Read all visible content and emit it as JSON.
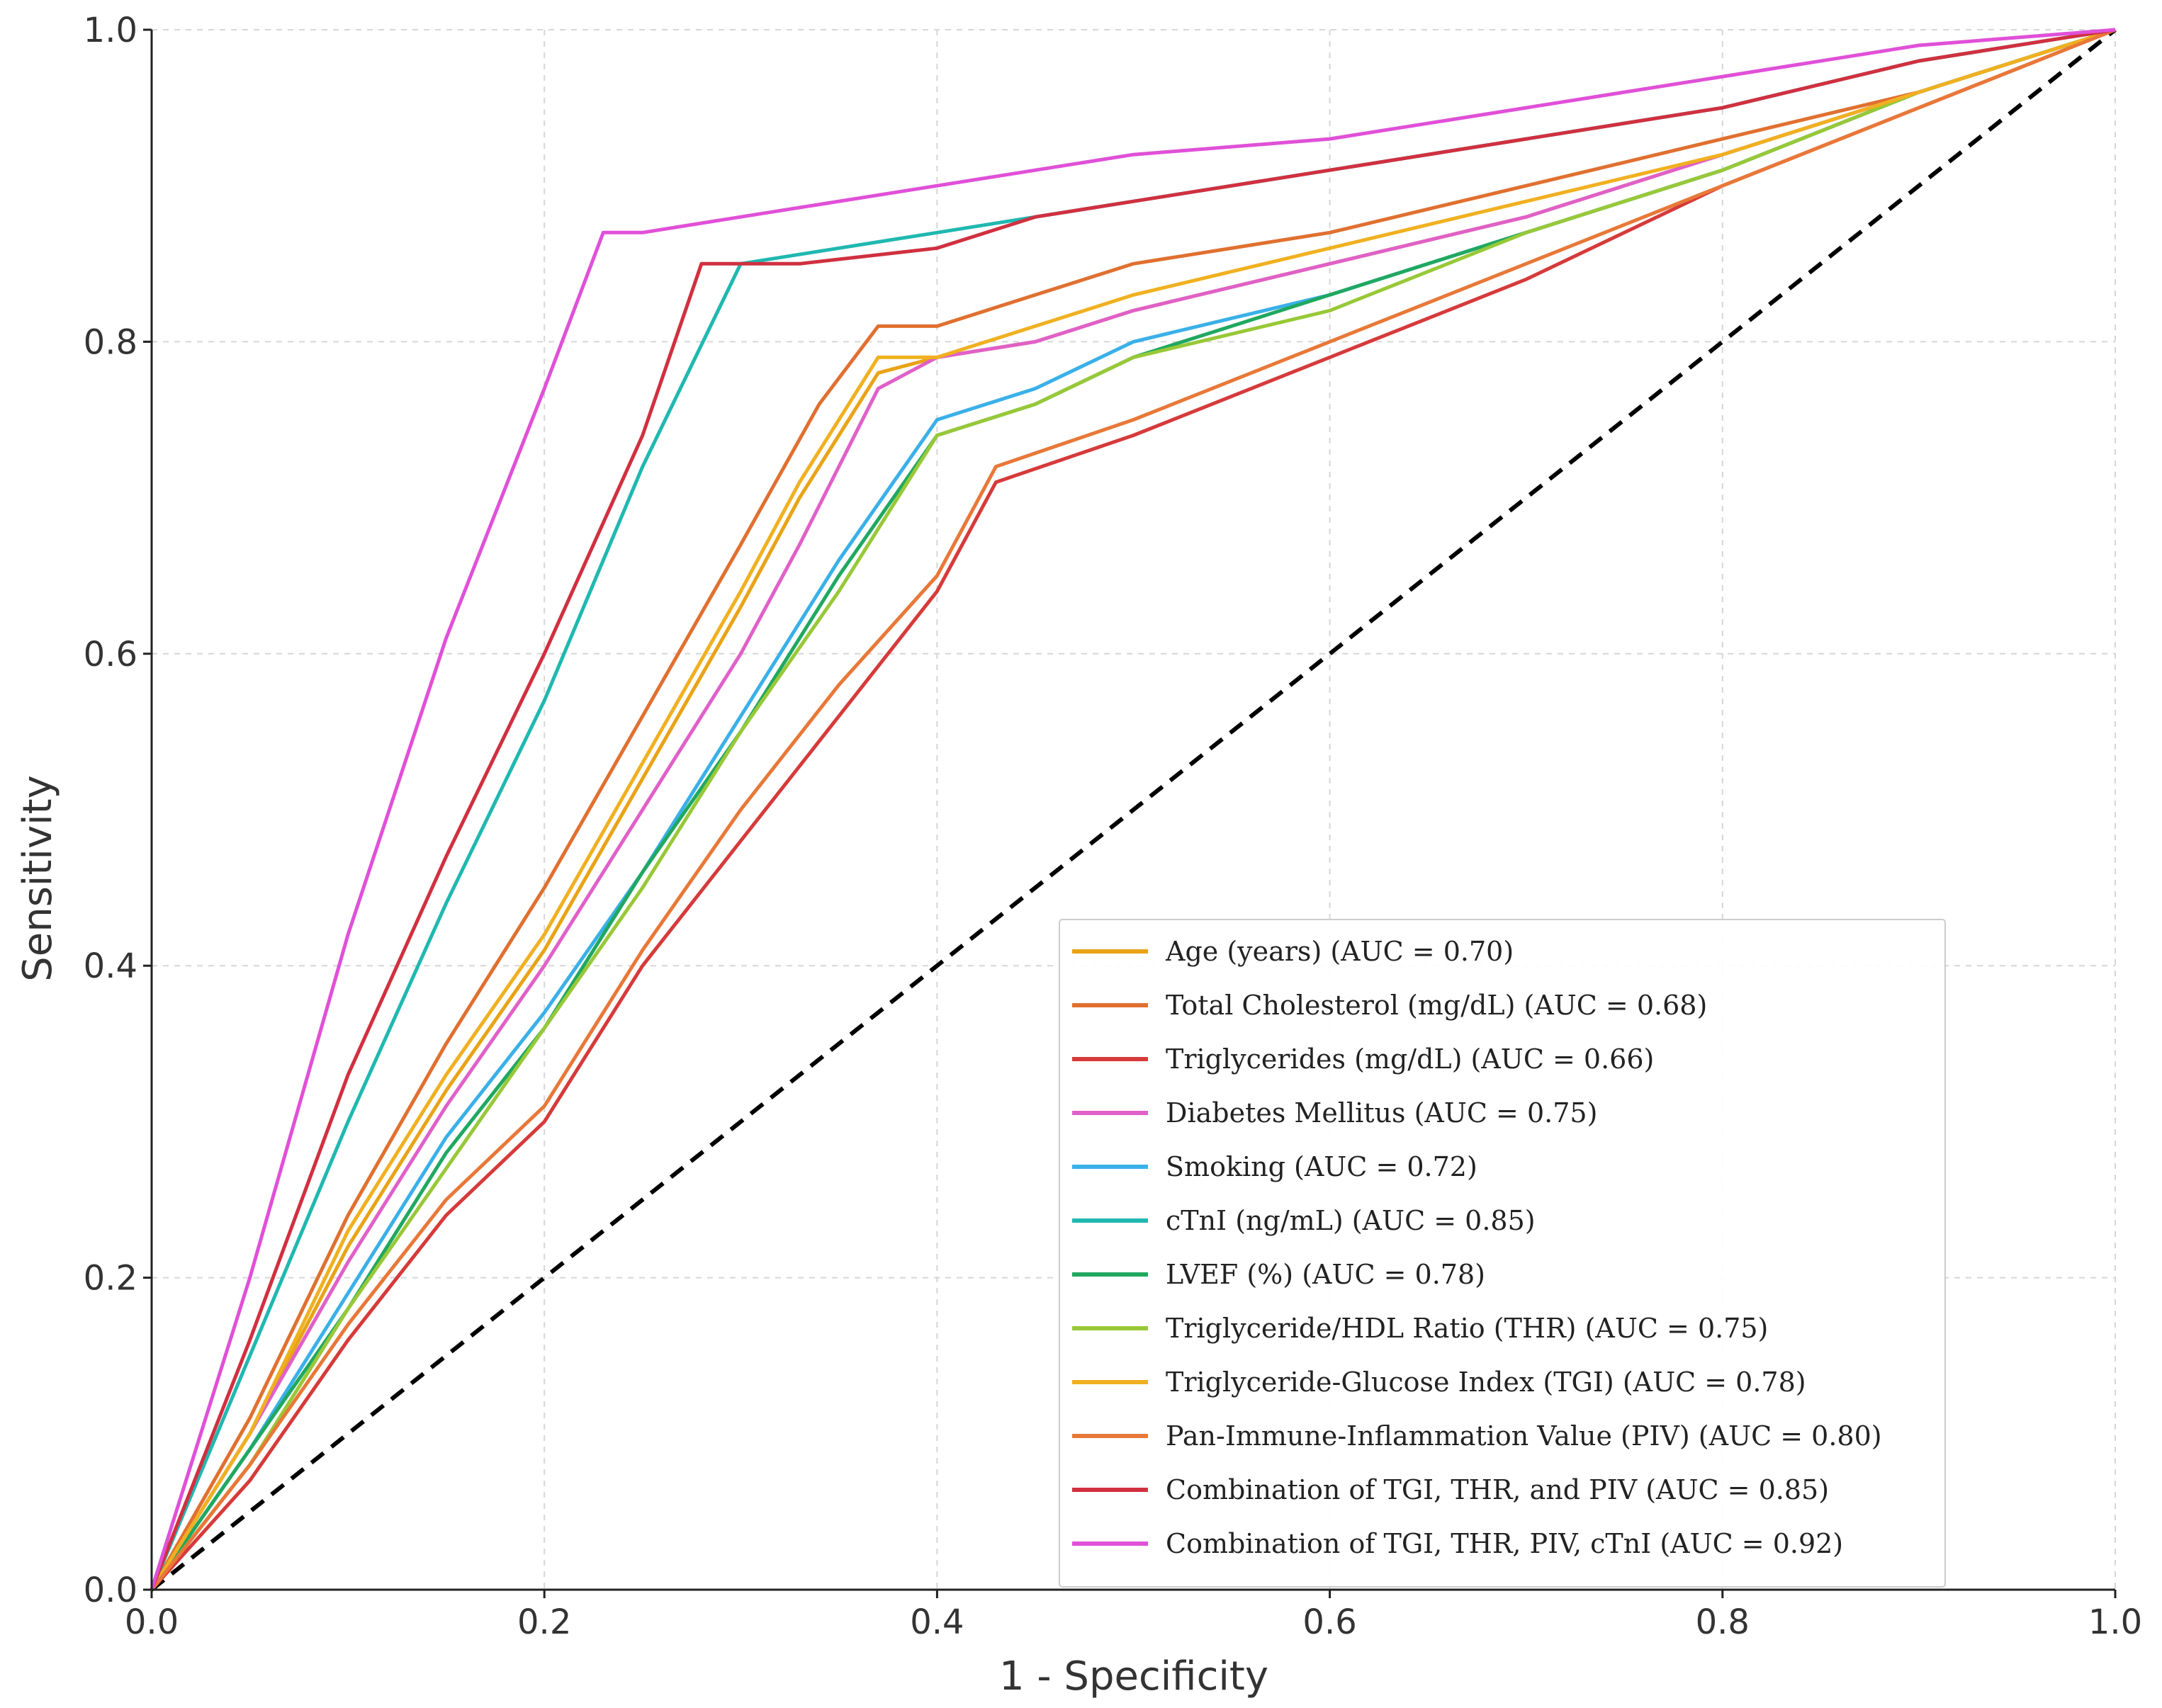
{
  "chart_data": {
    "type": "line",
    "title": "",
    "xlabel": "1 - Specificity",
    "ylabel": "Sensitivity",
    "xlim": [
      0,
      1
    ],
    "ylim": [
      0,
      1
    ],
    "xticks": [
      "0.0",
      "0.2",
      "0.4",
      "0.6",
      "0.8",
      "1.0"
    ],
    "yticks": [
      "0.0",
      "0.2",
      "0.4",
      "0.6",
      "0.8",
      "1.0"
    ],
    "grid": true,
    "legend_position": "bottom-right",
    "reference_line": {
      "name": "chance",
      "x": [
        0,
        1
      ],
      "y": [
        0,
        1
      ],
      "color": "#000000",
      "style": "dashed"
    },
    "series": [
      {
        "name": "Age (years) (AUC = 0.70)",
        "color": "#e8a317",
        "x": [
          0,
          0.05,
          0.1,
          0.15,
          0.2,
          0.25,
          0.3,
          0.33,
          0.37,
          0.4,
          0.45,
          0.5,
          0.6,
          0.7,
          0.8,
          0.9,
          1.0
        ],
        "y": [
          0,
          0.1,
          0.22,
          0.32,
          0.41,
          0.52,
          0.63,
          0.7,
          0.78,
          0.79,
          0.8,
          0.82,
          0.85,
          0.88,
          0.92,
          0.96,
          1.0
        ]
      },
      {
        "name": "Total Cholesterol (mg/dL) (AUC = 0.68)",
        "color": "#e07030",
        "x": [
          0,
          0.05,
          0.1,
          0.15,
          0.2,
          0.25,
          0.3,
          0.34,
          0.37,
          0.4,
          0.45,
          0.5,
          0.6,
          0.7,
          0.8,
          0.9,
          1.0
        ],
        "y": [
          0,
          0.11,
          0.24,
          0.35,
          0.45,
          0.56,
          0.67,
          0.76,
          0.81,
          0.81,
          0.83,
          0.85,
          0.87,
          0.9,
          0.93,
          0.96,
          1.0
        ]
      },
      {
        "name": "Triglycerides (mg/dL) (AUC = 0.66)",
        "color": "#d63a3a",
        "x": [
          0,
          0.05,
          0.1,
          0.15,
          0.2,
          0.25,
          0.3,
          0.35,
          0.4,
          0.43,
          0.5,
          0.6,
          0.7,
          0.8,
          0.9,
          1.0
        ],
        "y": [
          0,
          0.07,
          0.16,
          0.24,
          0.3,
          0.4,
          0.48,
          0.56,
          0.64,
          0.71,
          0.74,
          0.79,
          0.84,
          0.9,
          0.95,
          1.0
        ]
      },
      {
        "name": "Diabetes Mellitus (AUC = 0.75)",
        "color": "#e060c8",
        "x": [
          0,
          0.05,
          0.1,
          0.15,
          0.2,
          0.25,
          0.3,
          0.33,
          0.37,
          0.4,
          0.45,
          0.5,
          0.6,
          0.7,
          0.8,
          0.9,
          1.0
        ],
        "y": [
          0,
          0.1,
          0.21,
          0.31,
          0.4,
          0.5,
          0.6,
          0.67,
          0.77,
          0.79,
          0.8,
          0.82,
          0.85,
          0.88,
          0.92,
          0.96,
          1.0
        ]
      },
      {
        "name": "Smoking (AUC = 0.72)",
        "color": "#3ab0e8",
        "x": [
          0,
          0.05,
          0.1,
          0.15,
          0.2,
          0.25,
          0.3,
          0.35,
          0.4,
          0.45,
          0.5,
          0.6,
          0.7,
          0.8,
          0.9,
          1.0
        ],
        "y": [
          0,
          0.09,
          0.19,
          0.29,
          0.37,
          0.46,
          0.56,
          0.66,
          0.75,
          0.77,
          0.8,
          0.83,
          0.87,
          0.91,
          0.96,
          1.0
        ]
      },
      {
        "name": "cTnI (ng/mL) (AUC = 0.85)",
        "color": "#20b8b0",
        "x": [
          0,
          0.05,
          0.1,
          0.15,
          0.2,
          0.25,
          0.3,
          0.35,
          0.4,
          0.45,
          0.5,
          0.6,
          0.7,
          0.8,
          0.9,
          1.0
        ],
        "y": [
          0,
          0.15,
          0.3,
          0.44,
          0.57,
          0.72,
          0.85,
          0.86,
          0.87,
          0.88,
          0.89,
          0.91,
          0.93,
          0.95,
          0.98,
          1.0
        ]
      },
      {
        "name": "LVEF (%) (AUC = 0.78)",
        "color": "#20a860",
        "x": [
          0,
          0.05,
          0.1,
          0.15,
          0.2,
          0.25,
          0.3,
          0.35,
          0.4,
          0.45,
          0.5,
          0.6,
          0.7,
          0.8,
          0.9,
          1.0
        ],
        "y": [
          0,
          0.09,
          0.18,
          0.28,
          0.36,
          0.46,
          0.55,
          0.65,
          0.74,
          0.76,
          0.79,
          0.83,
          0.87,
          0.91,
          0.96,
          1.0
        ]
      },
      {
        "name": "Triglyceride/HDL Ratio (THR) (AUC = 0.75)",
        "color": "#98c838",
        "x": [
          0,
          0.05,
          0.1,
          0.15,
          0.2,
          0.25,
          0.3,
          0.35,
          0.4,
          0.45,
          0.5,
          0.6,
          0.7,
          0.8,
          0.9,
          1.0
        ],
        "y": [
          0,
          0.08,
          0.18,
          0.27,
          0.36,
          0.45,
          0.55,
          0.64,
          0.74,
          0.76,
          0.79,
          0.82,
          0.87,
          0.91,
          0.96,
          1.0
        ]
      },
      {
        "name": "Triglyceride-Glucose Index (TGI) (AUC = 0.78)",
        "color": "#f0b020",
        "x": [
          0,
          0.05,
          0.1,
          0.15,
          0.2,
          0.25,
          0.3,
          0.33,
          0.37,
          0.4,
          0.45,
          0.5,
          0.6,
          0.7,
          0.8,
          0.9,
          1.0
        ],
        "y": [
          0,
          0.1,
          0.23,
          0.33,
          0.42,
          0.53,
          0.64,
          0.71,
          0.79,
          0.79,
          0.81,
          0.83,
          0.86,
          0.89,
          0.92,
          0.96,
          1.0
        ]
      },
      {
        "name": "Pan-Immune-Inflammation Value (PIV) (AUC = 0.80)",
        "color": "#e87838",
        "x": [
          0,
          0.05,
          0.1,
          0.15,
          0.2,
          0.25,
          0.3,
          0.35,
          0.4,
          0.43,
          0.5,
          0.6,
          0.7,
          0.8,
          0.9,
          1.0
        ],
        "y": [
          0,
          0.08,
          0.17,
          0.25,
          0.31,
          0.41,
          0.5,
          0.58,
          0.65,
          0.72,
          0.75,
          0.8,
          0.85,
          0.9,
          0.95,
          1.0
        ]
      },
      {
        "name": "Combination of TGI, THR, and PIV (AUC = 0.85)",
        "color": "#d03040",
        "x": [
          0,
          0.05,
          0.1,
          0.15,
          0.2,
          0.25,
          0.28,
          0.33,
          0.4,
          0.45,
          0.5,
          0.6,
          0.7,
          0.8,
          0.9,
          1.0
        ],
        "y": [
          0,
          0.16,
          0.33,
          0.47,
          0.6,
          0.74,
          0.85,
          0.85,
          0.86,
          0.88,
          0.89,
          0.91,
          0.93,
          0.95,
          0.98,
          1.0
        ]
      },
      {
        "name": "Combination of TGI, THR, PIV, cTnI (AUC = 0.92)",
        "color": "#e050d8",
        "x": [
          0,
          0.05,
          0.1,
          0.15,
          0.2,
          0.23,
          0.25,
          0.3,
          0.4,
          0.5,
          0.6,
          0.7,
          0.8,
          0.9,
          1.0
        ],
        "y": [
          0,
          0.2,
          0.42,
          0.61,
          0.77,
          0.87,
          0.87,
          0.88,
          0.9,
          0.92,
          0.93,
          0.95,
          0.97,
          0.99,
          1.0
        ]
      }
    ]
  }
}
